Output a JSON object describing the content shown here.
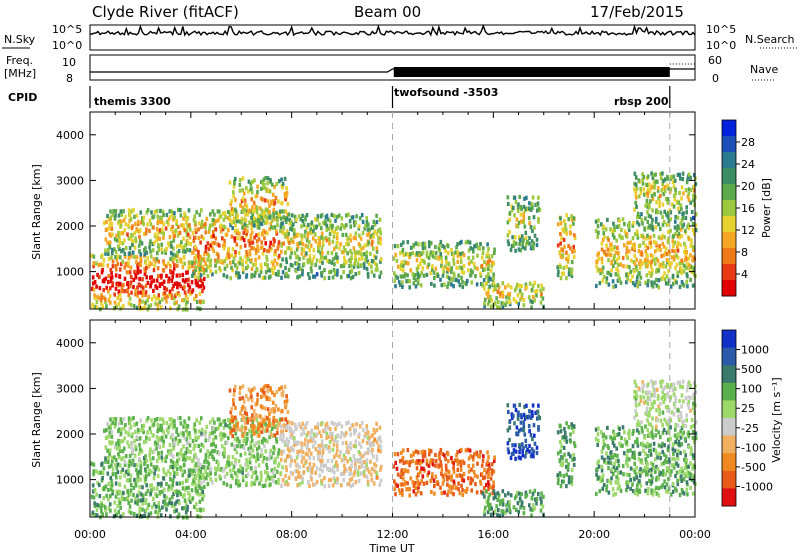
{
  "header": {
    "station": "Clyde River (fitACF)",
    "beam": "Beam 00",
    "date": "17/Feb/2015"
  },
  "status_panels": {
    "nsky_label": "N.Sky",
    "nsky_ticks": [
      "10^5",
      "10^0"
    ],
    "nsearch_label": "N.Search",
    "nsearch_ticks": [
      "10^5",
      "10^0"
    ],
    "freq_label": "Freq.",
    "freq_unit": "[MHz]",
    "freq_ticks": [
      "10",
      "8"
    ],
    "nave_label": "Nave",
    "nave_ticks": [
      "60",
      "0"
    ],
    "cpid_label": "CPID",
    "cpid_segments": [
      {
        "name": "themis 3300",
        "start_hour": 0.0,
        "end_hour": 12.0
      },
      {
        "name": "twofsound -3503",
        "start_hour": 12.0,
        "end_hour": 23.0
      },
      {
        "name": "rbsp 200",
        "start_hour": 23.0,
        "end_hour": 24.0
      }
    ]
  },
  "chart_data": [
    {
      "type": "heatmap",
      "name": "power",
      "ylabel": "Slant Range [km]",
      "xlabel": "",
      "x_range_hours": [
        0,
        24
      ],
      "ylim": [
        180,
        4500
      ],
      "yticks": [
        "1000",
        "2000",
        "3000",
        "4000"
      ],
      "colorbar": {
        "label": "Power [dB]",
        "ticks": [
          "4",
          "8",
          "12",
          "16",
          "20",
          "24",
          "28"
        ],
        "colors": [
          "#0022dd",
          "#1c4fb8",
          "#2c7a8f",
          "#3c8c64",
          "#5aa84a",
          "#9bc83d",
          "#e8d230",
          "#f5a623",
          "#f07a18",
          "#e83a14",
          "#e30000"
        ]
      }
    },
    {
      "type": "heatmap",
      "name": "velocity",
      "ylabel": "Slant Range [km]",
      "xlabel": "Time UT",
      "x_range_hours": [
        0,
        24
      ],
      "ylim": [
        180,
        4500
      ],
      "yticks": [
        "1000",
        "2000",
        "3000",
        "4000"
      ],
      "xticks": [
        "00:00",
        "04:00",
        "08:00",
        "12:00",
        "16:00",
        "20:00",
        "00:00"
      ],
      "colorbar": {
        "label": "Velocity [m s⁻¹]",
        "ticks": [
          "1000",
          "500",
          "100",
          "25",
          "-25",
          "-100",
          "-500",
          "-1000"
        ],
        "colors": [
          "#1030c8",
          "#2a5aa8",
          "#3a7a6a",
          "#5ab04a",
          "#9cd86a",
          "#cccccc",
          "#f0b060",
          "#f08a20",
          "#e85a18",
          "#e01010"
        ]
      }
    }
  ]
}
